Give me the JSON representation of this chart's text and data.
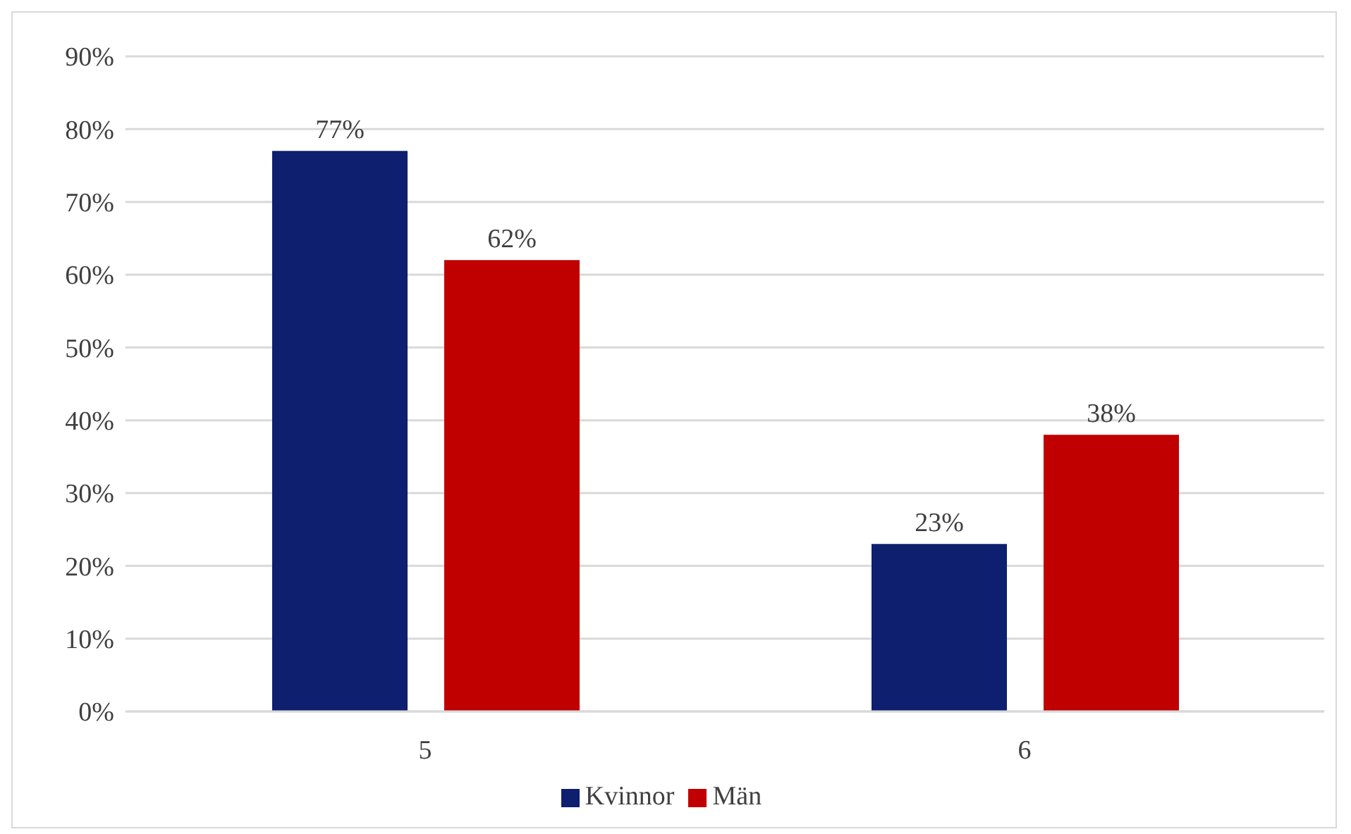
{
  "chart_data": {
    "type": "bar",
    "categories": [
      "5",
      "6"
    ],
    "series": [
      {
        "name": "Kvinnor",
        "color": "#0d1f6e",
        "values": [
          77,
          23
        ],
        "value_labels": [
          "77%",
          "23%"
        ]
      },
      {
        "name": "Män",
        "color": "#c00000",
        "values": [
          62,
          38
        ],
        "value_labels": [
          "62%",
          "38%"
        ]
      }
    ],
    "ylim": [
      0,
      90
    ],
    "yticks": [
      {
        "value": 0,
        "label": "0%"
      },
      {
        "value": 10,
        "label": "10%"
      },
      {
        "value": 20,
        "label": "20%"
      },
      {
        "value": 30,
        "label": "30%"
      },
      {
        "value": 40,
        "label": "40%"
      },
      {
        "value": 50,
        "label": "50%"
      },
      {
        "value": 60,
        "label": "60%"
      },
      {
        "value": 70,
        "label": "70%"
      },
      {
        "value": 80,
        "label": "80%"
      },
      {
        "value": 90,
        "label": "90%"
      }
    ],
    "grid": "y",
    "legend": "bottom"
  }
}
